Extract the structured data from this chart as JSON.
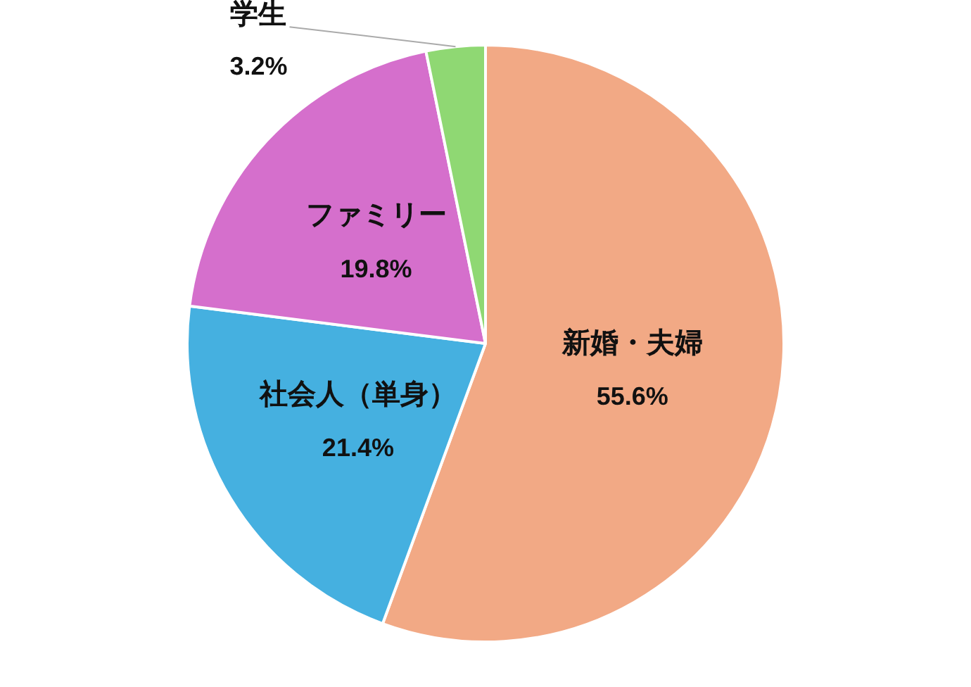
{
  "chart_data": {
    "type": "pie",
    "categories": [
      "新婚・夫婦",
      "社会人（単身）",
      "ファミリー",
      "学生"
    ],
    "values": [
      55.6,
      21.4,
      19.8,
      3.2
    ],
    "value_labels": [
      "55.6%",
      "21.4%",
      "19.8%",
      "3.2%"
    ],
    "colors": [
      "#f2a985",
      "#45b0e0",
      "#d56fcc",
      "#8fd873"
    ],
    "legend": false
  }
}
